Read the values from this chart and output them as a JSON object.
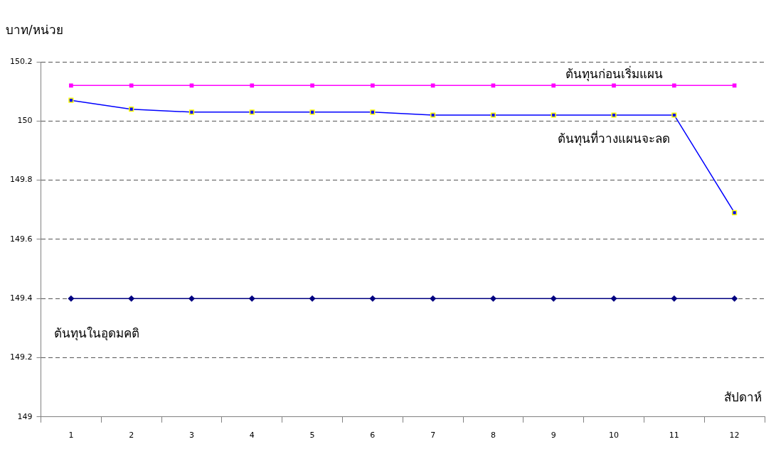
{
  "chart_data": {
    "type": "line",
    "ylabel": "บาท/หน่วย",
    "xlabel": "สัปดาห์",
    "categories": [
      "1",
      "2",
      "3",
      "4",
      "5",
      "6",
      "7",
      "8",
      "9",
      "10",
      "11",
      "12"
    ],
    "series": [
      {
        "name": "ต้นทุนก่อนเริ่มแผน",
        "color": "#ff00ff",
        "marker": "square",
        "values": [
          150.12,
          150.12,
          150.12,
          150.12,
          150.12,
          150.12,
          150.12,
          150.12,
          150.12,
          150.12,
          150.12,
          150.12
        ]
      },
      {
        "name": "ต้นทุนที่วางแผนจะลด",
        "color": "#0000ff",
        "marker": "square",
        "values": [
          150.07,
          150.04,
          150.03,
          150.03,
          150.03,
          150.03,
          150.02,
          150.02,
          150.02,
          150.02,
          150.02,
          149.69
        ]
      },
      {
        "name": "ต้นทุนในอุดมคติ",
        "color": "#000080",
        "marker": "diamond",
        "values": [
          149.4,
          149.4,
          149.4,
          149.4,
          149.4,
          149.4,
          149.4,
          149.4,
          149.4,
          149.4,
          149.4,
          149.4
        ]
      }
    ],
    "ylim": [
      149,
      150.2
    ],
    "yticks": [
      149,
      149.2,
      149.4,
      149.6,
      149.8,
      150,
      150.2
    ],
    "grid": "y",
    "legend": false,
    "line_style": "solid"
  }
}
